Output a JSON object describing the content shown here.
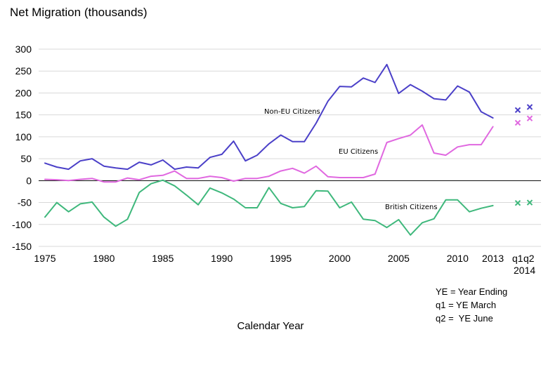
{
  "chart_data": {
    "type": "line",
    "title": "Net Migration (thousands)",
    "xlabel": "Calendar Year",
    "ylabel": "",
    "ylim": [
      -150,
      300
    ],
    "xlim": [
      1975,
      2013
    ],
    "grid": true,
    "y_ticks": [
      "300",
      "250",
      "200",
      "150",
      "100",
      "50",
      "0",
      "-50",
      "-100",
      "-150"
    ],
    "y_tick_values": [
      300,
      250,
      200,
      150,
      100,
      50,
      0,
      -50,
      -100,
      -150
    ],
    "x_ticks": [
      {
        "year": 1975,
        "label": "1975"
      },
      {
        "year": 1980,
        "label": "1980"
      },
      {
        "year": 1985,
        "label": "1985"
      },
      {
        "year": 1990,
        "label": "1990"
      },
      {
        "year": 1995,
        "label": "1995"
      },
      {
        "year": 2000,
        "label": "2000"
      },
      {
        "year": 2005,
        "label": "2005"
      },
      {
        "year": 2010,
        "label": "2010"
      },
      {
        "year": 2013,
        "label": "2013"
      }
    ],
    "extra_x_labels": {
      "q1": "q1",
      "q2": "q2",
      "year": "2014"
    },
    "x": [
      1975,
      1976,
      1977,
      1978,
      1979,
      1980,
      1981,
      1982,
      1983,
      1984,
      1985,
      1986,
      1987,
      1988,
      1989,
      1990,
      1991,
      1992,
      1993,
      1994,
      1995,
      1996,
      1997,
      1998,
      1999,
      2000,
      2001,
      2002,
      2003,
      2004,
      2005,
      2006,
      2007,
      2008,
      2009,
      2010,
      2011,
      2012,
      2013
    ],
    "series": [
      {
        "name": "Non-EU Citizens",
        "label": "Non-EU Citizens",
        "color": "#4b40c8",
        "values": [
          40,
          31,
          26,
          45,
          50,
          33,
          29,
          26,
          42,
          36,
          47,
          26,
          31,
          29,
          53,
          60,
          90,
          45,
          58,
          84,
          104,
          89,
          89,
          131,
          181,
          215,
          214,
          234,
          224,
          265,
          199,
          219,
          204,
          187,
          184,
          216,
          202,
          157,
          143
        ],
        "extra_points": [
          {
            "label": "q1",
            "value": 161
          },
          {
            "label": "q2",
            "value": 168
          }
        ]
      },
      {
        "name": "EU Citizens",
        "label": "EU Citizens",
        "color": "#e068e0",
        "values": [
          3,
          2,
          0,
          3,
          5,
          -3,
          -3,
          6,
          2,
          10,
          12,
          22,
          5,
          5,
          10,
          7,
          -1,
          5,
          5,
          10,
          22,
          28,
          17,
          33,
          9,
          7,
          7,
          7,
          15,
          87,
          96,
          104,
          127,
          63,
          58,
          77,
          82,
          82,
          123
        ],
        "extra_points": [
          {
            "label": "q1",
            "value": 132
          },
          {
            "label": "q2",
            "value": 142
          }
        ]
      },
      {
        "name": "British Citizens",
        "label": "British Citizens",
        "color": "#3fb87c",
        "values": [
          -83,
          -50,
          -71,
          -53,
          -49,
          -83,
          -104,
          -88,
          -27,
          -7,
          1,
          -12,
          -33,
          -55,
          -17,
          -28,
          -42,
          -62,
          -62,
          -16,
          -52,
          -62,
          -59,
          -23,
          -24,
          -62,
          -49,
          -88,
          -91,
          -107,
          -89,
          -124,
          -96,
          -87,
          -44,
          -44,
          -71,
          -63,
          -57
        ],
        "extra_points": [
          {
            "label": "q1",
            "value": -51
          },
          {
            "label": "q2",
            "value": -50
          }
        ]
      }
    ],
    "notes": [
      "YE = Year Ending",
      "q1 = YE March",
      "q2 =  YE June"
    ]
  }
}
